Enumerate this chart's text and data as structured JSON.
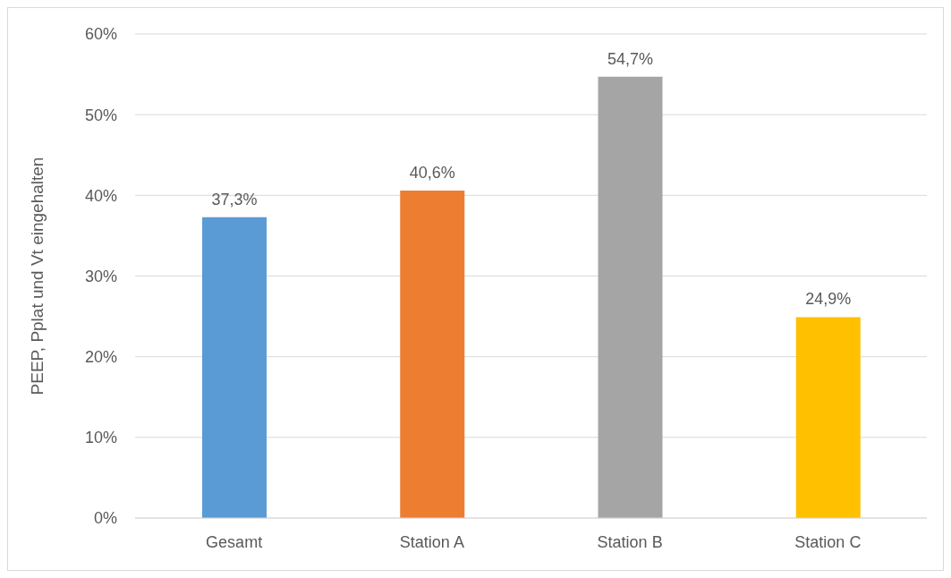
{
  "chart_data": {
    "type": "bar",
    "ylabel": "PEEP, Pplat und Vt eingehalten",
    "categories": [
      "Gesamt",
      "Station A",
      "Station B",
      "Station C"
    ],
    "values": [
      37.3,
      40.6,
      54.7,
      24.9
    ],
    "colors": [
      "#5b9bd5",
      "#ed7d31",
      "#a5a5a5",
      "#ffc000"
    ],
    "value_labels": [
      "37,3%",
      "40,6%",
      "54,7%",
      "24,9%"
    ],
    "ylim": [
      0,
      60
    ],
    "yticks": [
      {
        "value": 0,
        "label": "0%"
      },
      {
        "value": 10,
        "label": "10%"
      },
      {
        "value": 20,
        "label": "20%"
      },
      {
        "value": 30,
        "label": "30%"
      },
      {
        "value": 40,
        "label": "40%"
      },
      {
        "value": 50,
        "label": "50%"
      },
      {
        "value": 60,
        "label": "60%"
      }
    ],
    "grid": "y",
    "legend": false
  }
}
